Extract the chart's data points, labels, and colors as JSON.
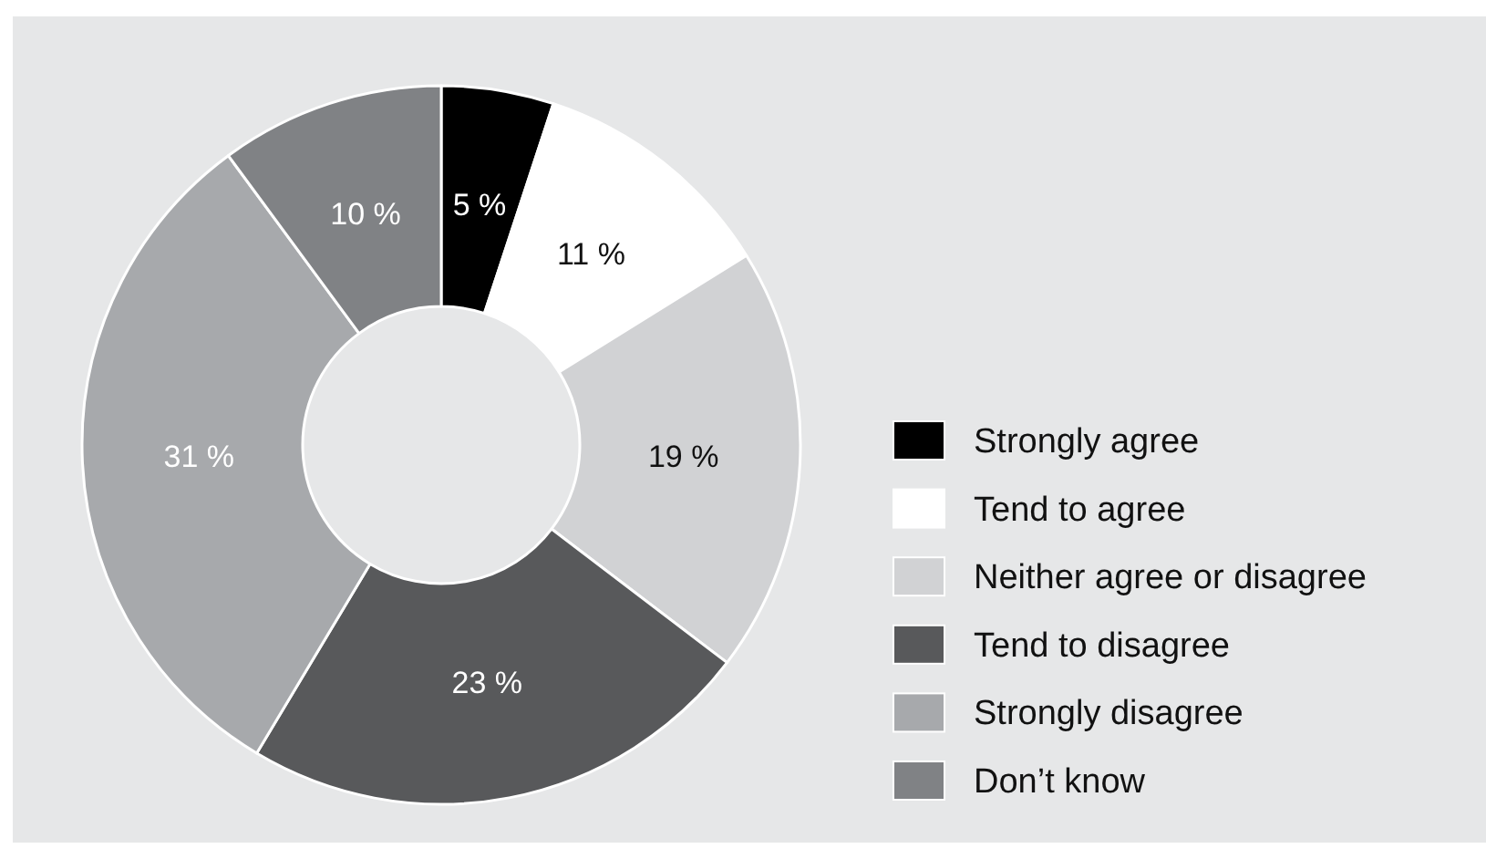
{
  "chart_data": {
    "type": "donut",
    "categories": [
      "Strongly agree",
      "Tend to agree",
      "Neither agree or disagree",
      "Tend to disagree",
      "Strongly disagree",
      "Don’t know"
    ],
    "values": [
      5,
      11,
      19,
      23,
      31,
      10
    ],
    "colors": [
      "#000000",
      "#ffffff",
      "#d1d2d4",
      "#58595b",
      "#a7a9ac",
      "#808285"
    ],
    "value_labels": [
      "5 %",
      "11 %",
      "19 %",
      "23 %",
      "31 %",
      "10 %"
    ],
    "legend": "right"
  }
}
